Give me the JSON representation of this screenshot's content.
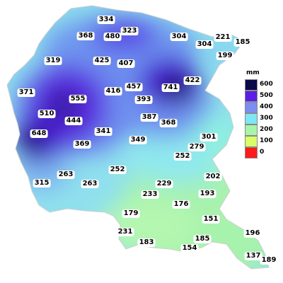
{
  "legend": {
    "unit": "mm",
    "items": [
      {
        "label": "600",
        "color": "#0a0a4a"
      },
      {
        "label": "500",
        "color": "#5a1ee6"
      },
      {
        "label": "400",
        "color": "#7a8ef0"
      },
      {
        "label": "300",
        "color": "#7fe6f5"
      },
      {
        "label": "200",
        "color": "#a6f5a8"
      },
      {
        "label": "100",
        "color": "#d9ff66"
      },
      {
        "label": "0",
        "color": "#ff1a1a"
      }
    ]
  },
  "stations": [
    "334",
    "368",
    "480",
    "323",
    "304",
    "221",
    "185",
    "304",
    "199",
    "319",
    "425",
    "407",
    "422",
    "371",
    "555",
    "416",
    "457",
    "741",
    "393",
    "510",
    "444",
    "387",
    "368",
    "648",
    "341",
    "349",
    "301",
    "369",
    "279",
    "252",
    "263",
    "252",
    "315",
    "263",
    "202",
    "229",
    "233",
    "193",
    "176",
    "179",
    "151",
    "231",
    "185",
    "196",
    "183",
    "154",
    "137",
    "189"
  ]
}
